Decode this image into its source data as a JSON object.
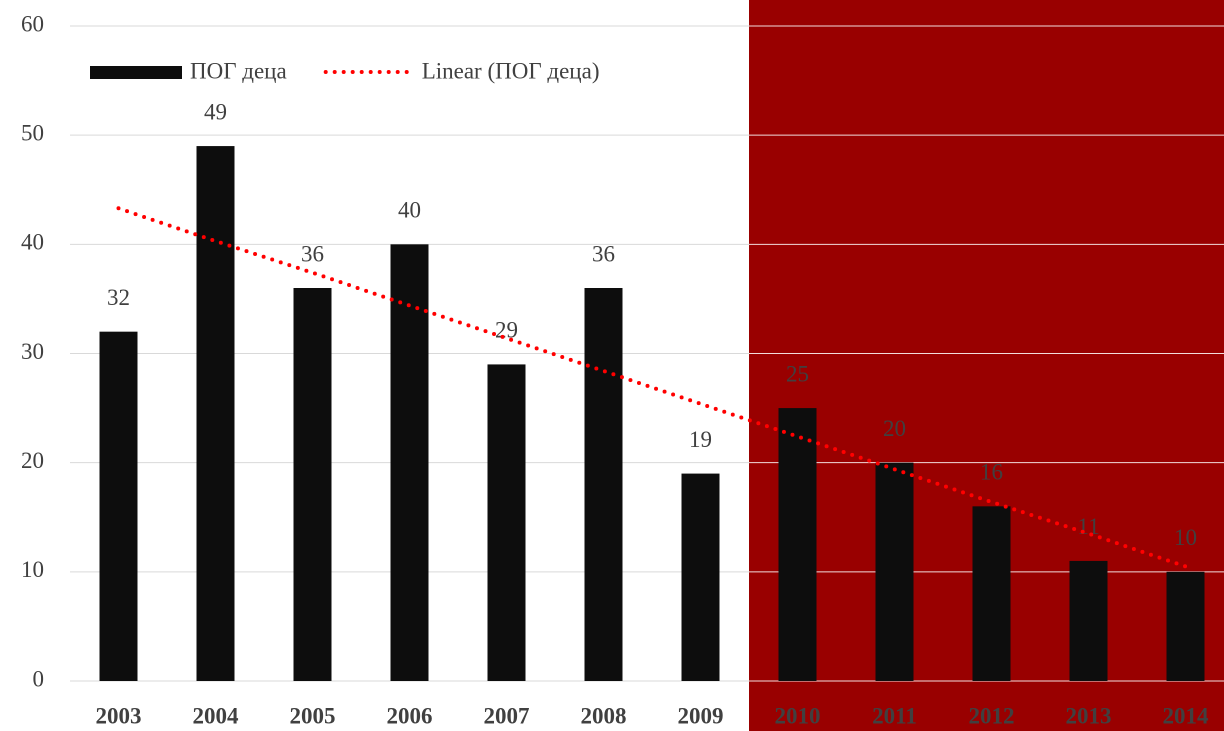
{
  "chart_data": {
    "type": "bar",
    "categories": [
      "2003",
      "2004",
      "2005",
      "2006",
      "2007",
      "2008",
      "2009",
      "2010",
      "2011",
      "2012",
      "2013",
      "2014"
    ],
    "series": [
      {
        "name": "ПОГ деца",
        "color": "#0d0d0d",
        "values": [
          32,
          49,
          36,
          40,
          29,
          36,
          19,
          25,
          20,
          16,
          11,
          10
        ]
      },
      {
        "name": "Linear (ПОГ деца)",
        "color": "#ff0000",
        "type": "line",
        "dotted": true,
        "values": [
          43.3,
          40.3,
          37.4,
          34.4,
          31.4,
          28.4,
          25.4,
          22.4,
          19.4,
          16.4,
          13.5,
          10.5
        ]
      }
    ],
    "ylim": [
      0,
      60
    ],
    "yticks": [
      0,
      10,
      20,
      30,
      40,
      50,
      60
    ],
    "grid": true,
    "legend": "top-left"
  }
}
